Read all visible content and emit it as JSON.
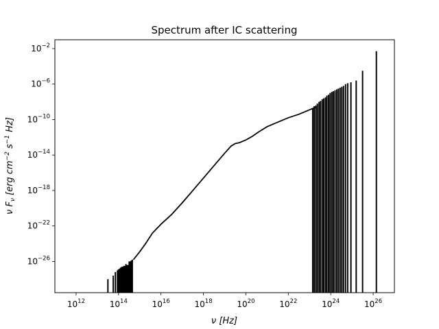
{
  "chart_data": {
    "type": "line",
    "title": "Spectrum after IC scattering",
    "xlabel": "ν [Hz]",
    "ylabel": "ν F_ν [erg cm^-2 s^-1 Hz]",
    "xscale": "log",
    "yscale": "log",
    "xlim": [
      100000000000.0,
      1e+27
    ],
    "ylim": [
      3e-30,
      0.1
    ],
    "x_tick_exponents": [
      12,
      14,
      16,
      18,
      20,
      22,
      24,
      26
    ],
    "y_tick_exponents": [
      -2,
      -6,
      -10,
      -14,
      -18,
      -22,
      -26
    ],
    "grid": false,
    "legend": "none",
    "line_color": "#000000",
    "series": [
      {
        "x_log": [
          14.7,
          15.0,
          15.3,
          15.6,
          16.0,
          16.5,
          17.0,
          17.5,
          18.0,
          18.5,
          19.0,
          19.3,
          19.5,
          19.7,
          20.0,
          20.3,
          20.6,
          21.0,
          21.5,
          22.0,
          22.5,
          23.0,
          23.3
        ],
        "y_log": [
          -25.8,
          -24.9,
          -23.9,
          -22.8,
          -21.8,
          -20.7,
          -19.4,
          -18.0,
          -16.6,
          -15.2,
          -13.8,
          -13.0,
          -12.7,
          -12.6,
          -12.3,
          -11.9,
          -11.4,
          -10.8,
          -10.3,
          -9.8,
          -9.4,
          -8.9,
          -8.6
        ]
      }
    ],
    "spikes_low": {
      "x_log": [
        13.5,
        13.75,
        13.85,
        13.95,
        14.0,
        14.05,
        14.1,
        14.15,
        14.2,
        14.25,
        14.3,
        14.35,
        14.4,
        14.45,
        14.5,
        14.55,
        14.6,
        14.65
      ],
      "y_log": [
        -28.0,
        -27.6,
        -27.2,
        -27.0,
        -26.9,
        -26.8,
        -26.7,
        -26.6,
        -26.6,
        -26.5,
        -26.5,
        -26.3,
        -26.4,
        -26.4,
        -26.0,
        -26.0,
        -25.9,
        -25.8
      ]
    },
    "spikes_high": {
      "x_log": [
        23.15,
        23.22,
        23.3,
        23.37,
        23.45,
        23.52,
        23.6,
        23.67,
        23.75,
        23.82,
        23.9,
        23.97,
        24.05,
        24.12,
        24.2,
        24.28,
        24.36,
        24.44,
        24.52,
        24.6,
        24.7,
        24.8,
        24.95,
        25.2,
        25.5,
        26.15
      ],
      "y_log": [
        -8.7,
        -8.5,
        -8.4,
        -8.2,
        -8.0,
        -7.9,
        -7.7,
        -7.6,
        -7.5,
        -7.3,
        -7.2,
        -7.0,
        -6.9,
        -6.8,
        -6.7,
        -6.6,
        -6.5,
        -6.4,
        -6.3,
        -6.2,
        -6.0,
        -5.9,
        -5.8,
        -5.6,
        -4.5,
        -2.3
      ]
    }
  }
}
